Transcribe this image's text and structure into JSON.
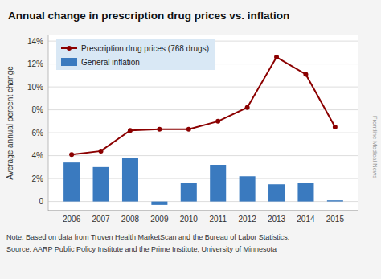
{
  "chart_data": {
    "type": "bar",
    "title": "Annual change in prescription drug prices vs. inflation",
    "y_label": "Average annual percent change",
    "x": [
      2006,
      2007,
      2008,
      2009,
      2010,
      2011,
      2012,
      2013,
      2014,
      2015
    ],
    "xlim": [
      2005.2,
      2015.8
    ],
    "xticks": [
      2006,
      2007,
      2008,
      2009,
      2010,
      2011,
      2012,
      2013,
      2014,
      2015
    ],
    "ylim": [
      -0.8,
      14.5
    ],
    "yticks": [
      0,
      {
        "value": 2,
        "label": "2%"
      },
      {
        "value": 4,
        "label": "4%"
      },
      {
        "value": 6,
        "label": "6%"
      },
      {
        "value": 8,
        "label": "8%"
      },
      {
        "value": 10,
        "label": "10%"
      },
      {
        "value": 12,
        "label": "12%"
      },
      {
        "value": 14,
        "label": "14%"
      }
    ],
    "grid": "y",
    "legend": "upper left",
    "series": [
      {
        "name": "Prescription drug prices (768 drugs)",
        "type": "line",
        "marker": "circle",
        "color": "#8b0000",
        "values": [
          4.1,
          4.4,
          6.2,
          6.3,
          6.3,
          7.0,
          8.2,
          12.6,
          11.1,
          6.5
        ]
      },
      {
        "name": "General inflation",
        "type": "bar",
        "color": "#3a7abf",
        "values": [
          3.4,
          3.0,
          3.8,
          -0.3,
          1.6,
          3.2,
          2.2,
          1.5,
          1.6,
          0.1
        ]
      }
    ],
    "annotations": [
      "Note: Based on data from Truven Health MarketScan and the Bureau of Labor Statistics.",
      "Source: AARP Public Policy Institute and the Prime Institute, University of Minnesota",
      "Frontline Medical News"
    ]
  }
}
